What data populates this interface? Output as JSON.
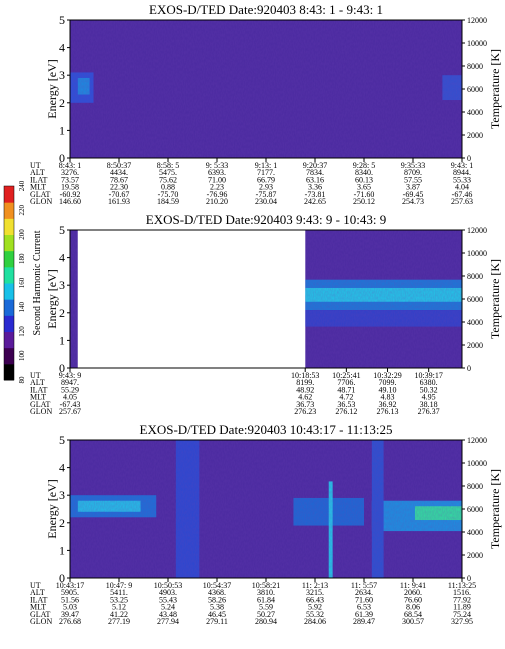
{
  "colorbar": {
    "label": "Second Harmonic Current",
    "ticks": [
      "80",
      "100",
      "120",
      "140",
      "160",
      "180",
      "200",
      "220",
      "240"
    ],
    "colors": [
      "#000000",
      "#3c0050",
      "#5a1a9a",
      "#2a2ad0",
      "#1a6ad8",
      "#18c0e8",
      "#20e0a0",
      "#30d040",
      "#a0e020",
      "#f0e030",
      "#f09020",
      "#e02020"
    ]
  },
  "chart_data": [
    {
      "type": "heatmap",
      "title": "EXOS-D/TED   Date:920403   8:43: 1 - 9:43: 1",
      "ylabel": "Energy [eV]",
      "y2label": "Temperature [K]",
      "ylim": [
        0,
        5
      ],
      "y2lim": [
        0,
        12000
      ],
      "yticks": [
        "0",
        "1",
        "2",
        "3",
        "4",
        "5"
      ],
      "y2ticks": [
        "0",
        "2000",
        "4000",
        "6000",
        "8000",
        "10000",
        "12000"
      ],
      "row_labels": [
        "UT",
        "ALT",
        "ILAT",
        "MLT",
        "GLAT",
        "GLON"
      ],
      "columns": [
        [
          "8:43: 1",
          "3276.",
          "73.57",
          "19.58",
          "-60.92",
          "146.60"
        ],
        [
          "8:50:37",
          "4434.",
          "78.67",
          "22.30",
          "-70.67",
          "161.93"
        ],
        [
          "8:58: 5",
          "5475.",
          "75.62",
          "0.88",
          "-75.70",
          "184.59"
        ],
        [
          "9: 5:33",
          "6393.",
          "71.00",
          "2.23",
          "-76.96",
          "210.20"
        ],
        [
          "9:13: 1",
          "7177.",
          "66.79",
          "2.93",
          "-75.87",
          "230.04"
        ],
        [
          "9:20:37",
          "7834.",
          "63.16",
          "3.36",
          "-73.81",
          "242.65"
        ],
        [
          "9:28: 5",
          "8340.",
          "60.13",
          "3.65",
          "-71.60",
          "250.12"
        ],
        [
          "9:35:33",
          "8709.",
          "57.55",
          "3.87",
          "-69.45",
          "254.73"
        ],
        [
          "9:43: 1",
          "8944.",
          "55.33",
          "4.04",
          "-67.46",
          "257.63"
        ]
      ]
    },
    {
      "type": "heatmap",
      "title": "EXOS-D/TED   Date:920403   9:43: 9 - 10:43: 9",
      "ylabel": "Energy [eV]",
      "y2label": "Temperature [K]",
      "ylim": [
        0,
        5
      ],
      "y2lim": [
        0,
        12000
      ],
      "yticks": [
        "0",
        "1",
        "2",
        "3",
        "4",
        "5"
      ],
      "y2ticks": [
        "0",
        "2000",
        "4000",
        "6000",
        "8000",
        "10000",
        "12000"
      ],
      "row_labels": [
        "UT",
        "ALT",
        "ILAT",
        "MLT",
        "GLAT",
        "GLON"
      ],
      "columns": [
        [
          "9:43: 9",
          "8947.",
          "55.29",
          "4.05",
          "-67.43",
          "257.67"
        ],
        [
          "10:18:53",
          "8199.",
          "48.92",
          "4.62",
          "36.73",
          "276.23"
        ],
        [
          "10:25:41",
          "7706.",
          "48.71",
          "4.72",
          "36.53",
          "276.12"
        ],
        [
          "10:32:29",
          "7099.",
          "49.10",
          "4.83",
          "36.92",
          "276.13"
        ],
        [
          "10:39:17",
          "6380.",
          "50.32",
          "4.95",
          "38.18",
          "276.37"
        ]
      ]
    },
    {
      "type": "heatmap",
      "title": "EXOS-D/TED   Date:920403   10:43:17 - 11:13:25",
      "ylabel": "Energy [eV]",
      "y2label": "Temperature [K]",
      "ylim": [
        0,
        5
      ],
      "y2lim": [
        0,
        12000
      ],
      "yticks": [
        "0",
        "1",
        "2",
        "3",
        "4",
        "5"
      ],
      "y2ticks": [
        "0",
        "2000",
        "4000",
        "6000",
        "8000",
        "10000",
        "12000"
      ],
      "row_labels": [
        "UT",
        "ALT",
        "ILAT",
        "MLT",
        "GLAT",
        "GLON"
      ],
      "columns": [
        [
          "10:43:17",
          "5905.",
          "51.56",
          "5.03",
          "39.47",
          "276.68"
        ],
        [
          "10:47: 9",
          "5411.",
          "53.25",
          "5.12",
          "41.22",
          "277.19"
        ],
        [
          "10:50:53",
          "4903.",
          "55.43",
          "5.24",
          "43.48",
          "277.94"
        ],
        [
          "10:54:37",
          "4368.",
          "58.26",
          "5.38",
          "46.45",
          "279.11"
        ],
        [
          "10:58:21",
          "3810.",
          "61.84",
          "5.59",
          "50.27",
          "280.94"
        ],
        [
          "11: 2:13",
          "3215.",
          "66.43",
          "5.92",
          "55.32",
          "284.06"
        ],
        [
          "11: 5:57",
          "2634.",
          "71.60",
          "6.53",
          "61.39",
          "289.47"
        ],
        [
          "11: 9:41",
          "2060.",
          "76.60",
          "8.06",
          "68.54",
          "300.57"
        ],
        [
          "11:13:25",
          "1516.",
          "77.92",
          "11.89",
          "75.24",
          "327.95"
        ]
      ]
    }
  ]
}
